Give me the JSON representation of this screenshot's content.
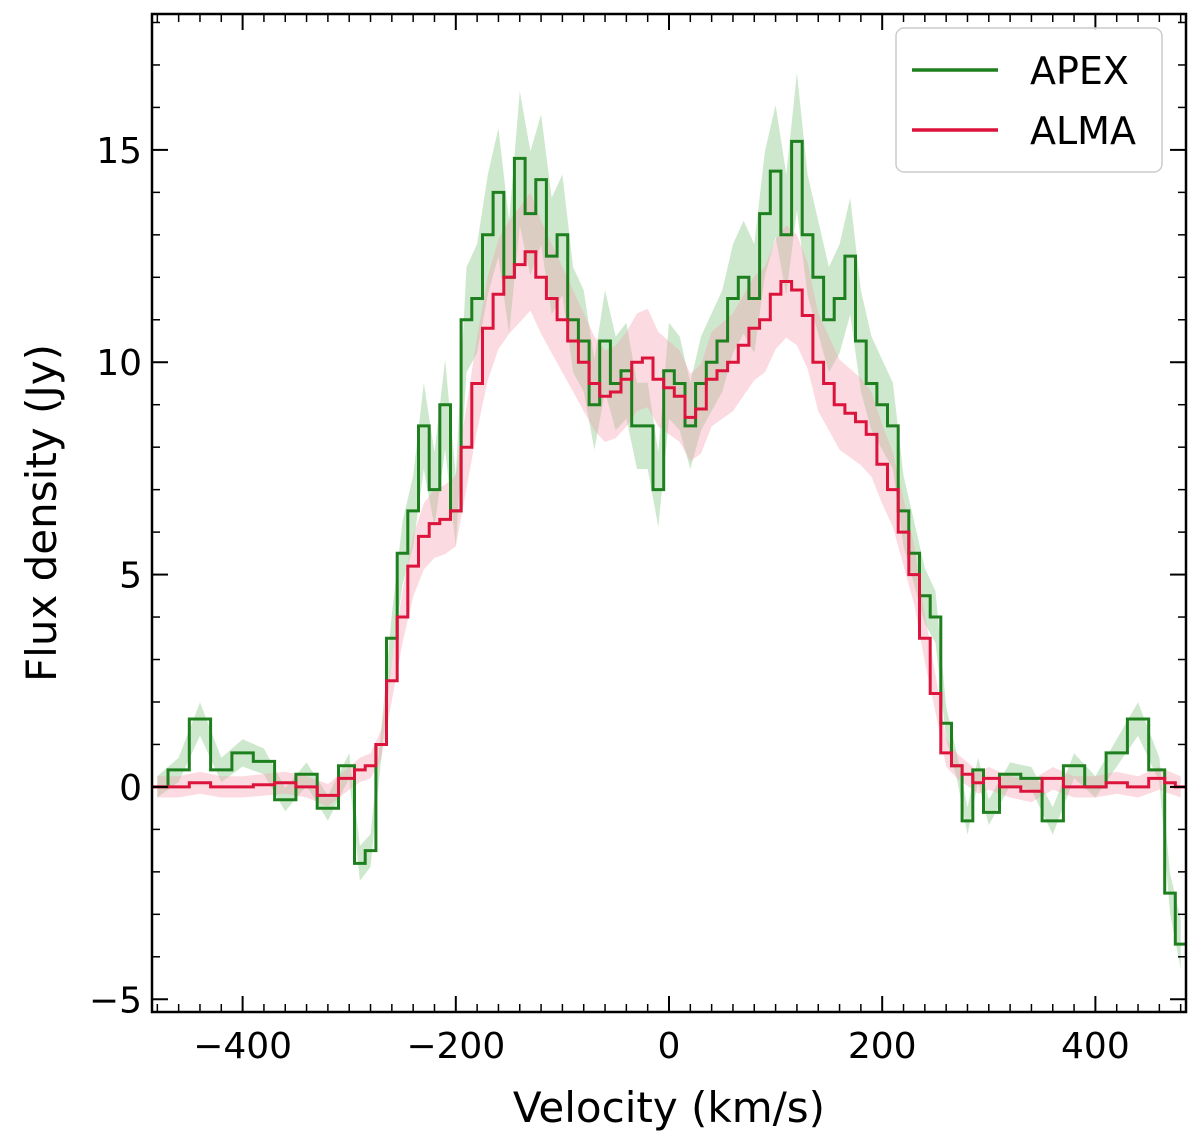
{
  "chart_data": {
    "type": "line",
    "title": "",
    "xlabel": "Velocity (km/s)",
    "ylabel": "Flux density (Jy)",
    "xlim": [
      -485,
      485
    ],
    "ylim": [
      -5.3,
      18.2
    ],
    "xticks": [
      -400,
      -200,
      0,
      200,
      400
    ],
    "xtick_labels": [
      "−400",
      "−200",
      "0",
      "200",
      "400"
    ],
    "yticks": [
      -5,
      0,
      5,
      10,
      15
    ],
    "ytick_labels": [
      "−5",
      "0",
      "5",
      "10",
      "15"
    ],
    "grid": false,
    "legend_position": "top-right",
    "series": [
      {
        "name": "APEX",
        "color": "#1e7f1e",
        "band_color": "#7ec27e",
        "style": "steps",
        "x": [
          -480,
          -460,
          -440,
          -420,
          -400,
          -380,
          -360,
          -340,
          -320,
          -300,
          -290,
          -280,
          -270,
          -260,
          -250,
          -240,
          -230,
          -220,
          -210,
          -200,
          -190,
          -180,
          -170,
          -160,
          -150,
          -140,
          -130,
          -120,
          -110,
          -100,
          -90,
          -80,
          -70,
          -60,
          -50,
          -40,
          -30,
          -20,
          -10,
          0,
          10,
          20,
          30,
          40,
          50,
          60,
          70,
          80,
          90,
          100,
          110,
          120,
          130,
          140,
          150,
          160,
          170,
          180,
          190,
          200,
          210,
          220,
          230,
          240,
          250,
          260,
          270,
          280,
          290,
          300,
          320,
          340,
          360,
          380,
          400,
          420,
          440,
          460,
          470,
          480
        ],
        "y": [
          0.0,
          0.4,
          1.6,
          0.4,
          0.8,
          0.6,
          -0.3,
          0.3,
          -0.5,
          0.5,
          -1.8,
          -1.5,
          1.0,
          3.5,
          5.5,
          6.5,
          8.5,
          7.0,
          9.0,
          6.5,
          11.0,
          11.5,
          13.0,
          14.0,
          12.0,
          14.8,
          13.5,
          14.3,
          12.5,
          13.0,
          11.0,
          10.5,
          9.0,
          10.5,
          9.5,
          9.8,
          8.5,
          8.5,
          7.0,
          9.8,
          9.5,
          8.5,
          9.5,
          10.0,
          10.5,
          11.5,
          12.0,
          11.5,
          13.5,
          14.5,
          13.0,
          15.2,
          13.0,
          12.0,
          11.0,
          11.5,
          12.5,
          10.5,
          9.5,
          9.0,
          8.5,
          6.5,
          5.5,
          4.5,
          4.0,
          1.5,
          0.5,
          -0.8,
          0.4,
          -0.6,
          0.3,
          0.2,
          -0.8,
          0.5,
          0.0,
          0.8,
          1.6,
          0.4,
          -2.5,
          -3.7
        ]
      },
      {
        "name": "ALMA",
        "color": "#dc143c",
        "band_color": "#f4a0b0",
        "style": "steps",
        "x": [
          -480,
          -460,
          -440,
          -420,
          -400,
          -380,
          -360,
          -340,
          -320,
          -300,
          -290,
          -280,
          -270,
          -260,
          -250,
          -240,
          -230,
          -220,
          -210,
          -200,
          -190,
          -180,
          -170,
          -160,
          -150,
          -140,
          -130,
          -120,
          -110,
          -100,
          -90,
          -80,
          -70,
          -60,
          -50,
          -40,
          -30,
          -20,
          -10,
          0,
          10,
          20,
          30,
          40,
          50,
          60,
          70,
          80,
          90,
          100,
          110,
          120,
          130,
          140,
          150,
          160,
          170,
          180,
          190,
          200,
          210,
          220,
          230,
          240,
          250,
          260,
          270,
          280,
          290,
          300,
          320,
          340,
          360,
          380,
          400,
          420,
          440,
          460,
          470,
          480
        ],
        "y": [
          0.0,
          0.0,
          0.1,
          0.0,
          0.0,
          0.05,
          0.1,
          0.0,
          -0.2,
          0.2,
          0.4,
          0.5,
          1.0,
          2.5,
          4.0,
          5.2,
          5.9,
          6.2,
          6.3,
          6.5,
          8.0,
          9.5,
          10.8,
          11.6,
          12.0,
          12.3,
          12.6,
          12.0,
          11.5,
          11.0,
          10.5,
          10.0,
          9.5,
          9.2,
          9.3,
          9.6,
          10.0,
          10.1,
          9.6,
          9.4,
          9.2,
          8.7,
          8.9,
          9.6,
          9.8,
          10.0,
          10.4,
          10.8,
          11.0,
          11.6,
          11.9,
          11.7,
          11.1,
          10.0,
          9.5,
          9.0,
          8.8,
          8.6,
          8.3,
          7.6,
          7.0,
          6.0,
          5.0,
          3.5,
          2.2,
          0.8,
          0.5,
          0.3,
          0.1,
          0.2,
          0.0,
          -0.1,
          0.2,
          0.0,
          0.0,
          0.1,
          0.0,
          0.2,
          0.1,
          0.0
        ]
      }
    ]
  }
}
